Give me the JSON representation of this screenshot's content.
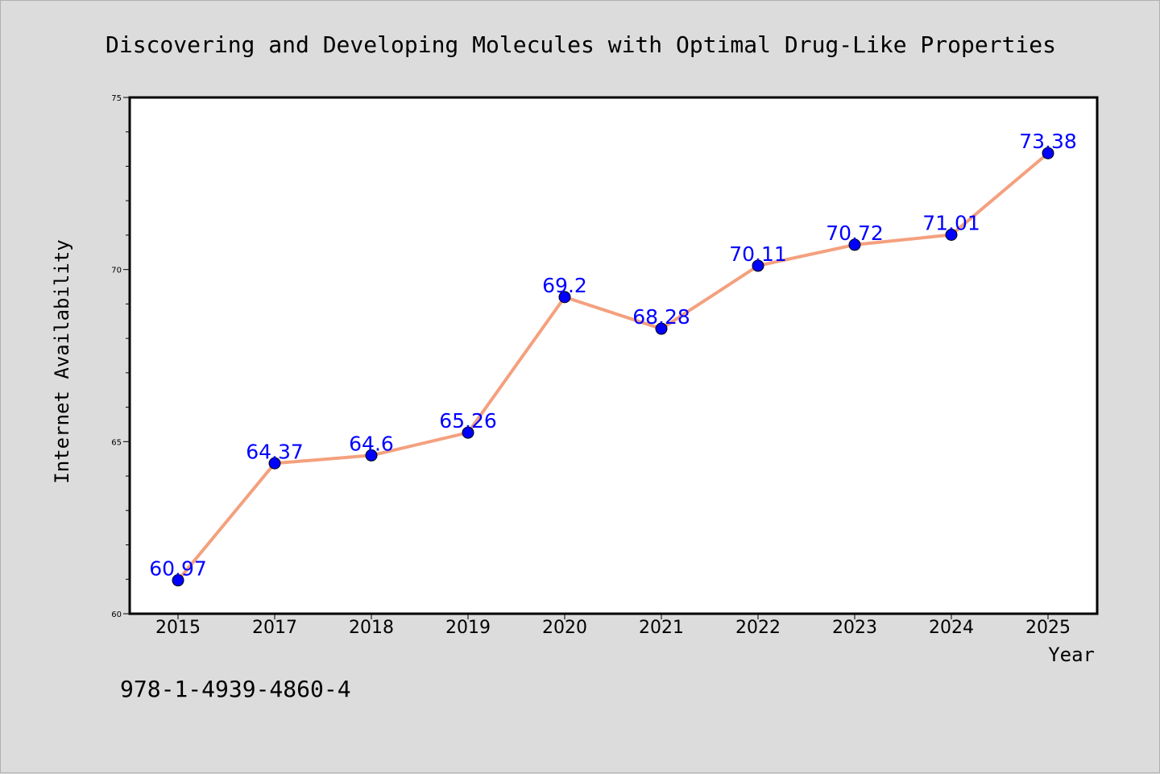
{
  "chart_data": {
    "type": "line",
    "title": "Discovering and Developing Molecules with Optimal Drug-Like Properties",
    "xlabel": "Year",
    "ylabel": "Internet Availability",
    "categories": [
      "2015",
      "2017",
      "2018",
      "2019",
      "2020",
      "2021",
      "2022",
      "2023",
      "2024",
      "2025"
    ],
    "series": [
      {
        "values": [
          60.97,
          64.37,
          64.6,
          65.26,
          69.2,
          68.28,
          70.11,
          70.72,
          71.01,
          73.38
        ],
        "labels": [
          "60.97",
          "64.37",
          "64.6",
          "65.26",
          "69.2",
          "68.28",
          "70.11",
          "70.72",
          "71.01",
          "73.38"
        ]
      }
    ],
    "ylim": [
      60,
      75
    ],
    "yticks": [
      60,
      65,
      70,
      75
    ],
    "ytick_labels": [
      "60",
      "65",
      "70",
      "75"
    ],
    "grid": false,
    "colors": {
      "line": "#f4a07e",
      "marker": "#0000ff",
      "data_label": "#0000ff",
      "background": "#dcdcdc",
      "plot_background": "#ffffff"
    }
  },
  "annotation": {
    "isbn": "978-1-4939-4860-4"
  }
}
